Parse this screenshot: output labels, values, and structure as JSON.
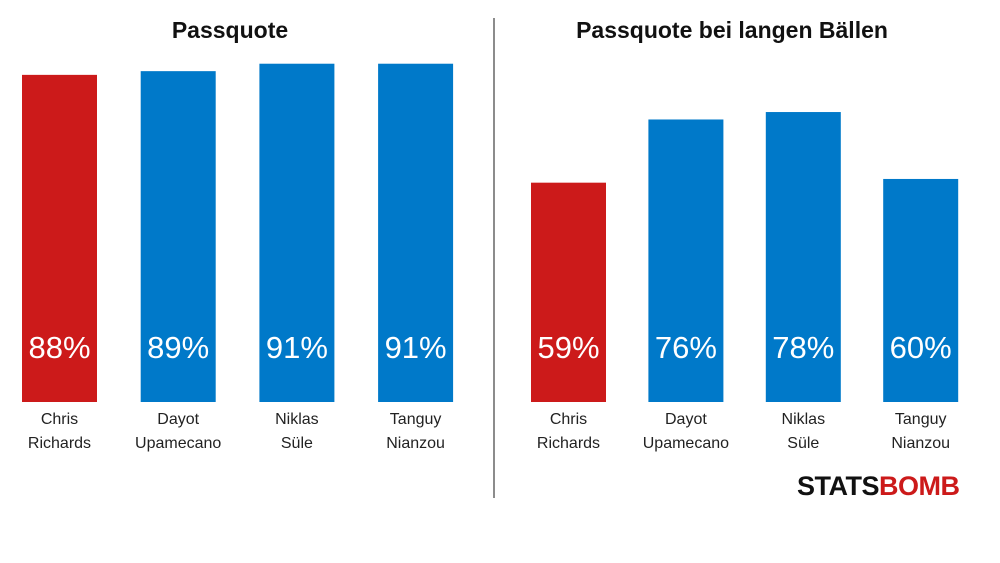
{
  "colors": {
    "highlight": "#cc1a1a",
    "default": "#0079c9",
    "divider": "#666666",
    "logo_dark": "#111111",
    "logo_accent": "#cc1a1a"
  },
  "chart_data": [
    {
      "type": "bar",
      "title": "Passquote",
      "categories": [
        [
          "Chris",
          "Richards"
        ],
        [
          "Dayot",
          "Upamecano"
        ],
        [
          "Niklas",
          "Süle"
        ],
        [
          "Tanguy",
          "Nianzou"
        ]
      ],
      "values": [
        88,
        89,
        91,
        91
      ],
      "value_labels": [
        "88%",
        "89%",
        "91%",
        "91%"
      ],
      "highlight_index": 0,
      "ylim": [
        0,
        100
      ],
      "grid": false
    },
    {
      "type": "bar",
      "title": "Passquote bei langen Bällen",
      "categories": [
        [
          "Chris",
          "Richards"
        ],
        [
          "Dayot",
          "Upamecano"
        ],
        [
          "Niklas",
          "Süle"
        ],
        [
          "Tanguy",
          "Nianzou"
        ]
      ],
      "values": [
        59,
        76,
        78,
        60
      ],
      "value_labels": [
        "59%",
        "76%",
        "78%",
        "60%"
      ],
      "highlight_index": 0,
      "ylim": [
        0,
        100
      ],
      "grid": false
    }
  ],
  "logo": {
    "part1": "STATS",
    "part2": "BOMB"
  }
}
